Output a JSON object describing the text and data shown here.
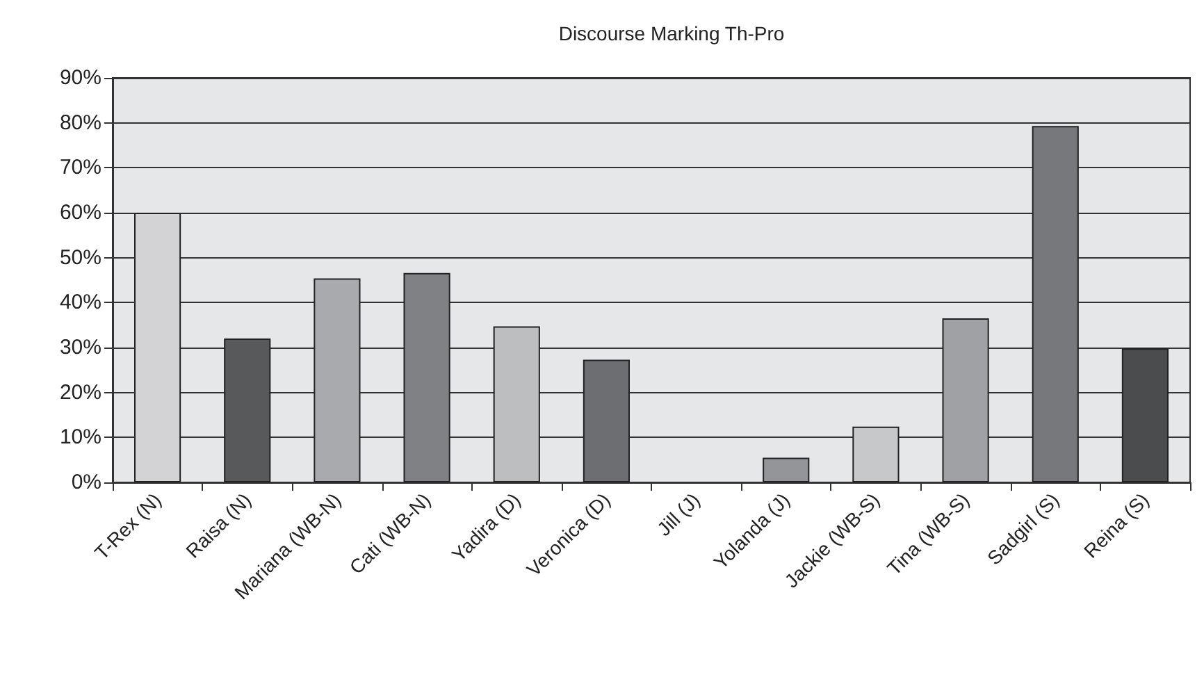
{
  "chart_data": {
    "type": "bar",
    "title": "Discourse Marking Th-Pro",
    "categories": [
      "T-Rex (N)",
      "Raisa (N)",
      "Mariana (WB-N)",
      "Cati (WB-N)",
      "Yadira (D)",
      "Veronica (D)",
      "Jill (J)",
      "Yolanda (J)",
      "Jackie (WB-S)",
      "Tina (WB-S)",
      "Sadgirl (S)",
      "Reina (S)"
    ],
    "values": [
      60,
      32,
      45.4,
      46.6,
      34.7,
      27.3,
      0,
      5.5,
      12.4,
      36.5,
      79.3,
      29.8
    ],
    "colors": [
      "#d3d3d5",
      "#58595b",
      "#a9aaad",
      "#808184",
      "#bdbec0",
      "#6d6e71",
      "#939598",
      "#939598",
      "#c7c8ca",
      "#a0a1a4",
      "#77787b",
      "#4b4c4e"
    ],
    "ylim": [
      0,
      90
    ],
    "yticks": [
      {
        "value": 0,
        "label": "0%"
      },
      {
        "value": 10,
        "label": "10%"
      },
      {
        "value": 20,
        "label": "20%"
      },
      {
        "value": 30,
        "label": "30%"
      },
      {
        "value": 40,
        "label": "40%"
      },
      {
        "value": 50,
        "label": "50%"
      },
      {
        "value": 60,
        "label": "60%"
      },
      {
        "value": 70,
        "label": "70%"
      },
      {
        "value": 80,
        "label": "80%"
      },
      {
        "value": 90,
        "label": "90%"
      }
    ],
    "grid": "y"
  }
}
